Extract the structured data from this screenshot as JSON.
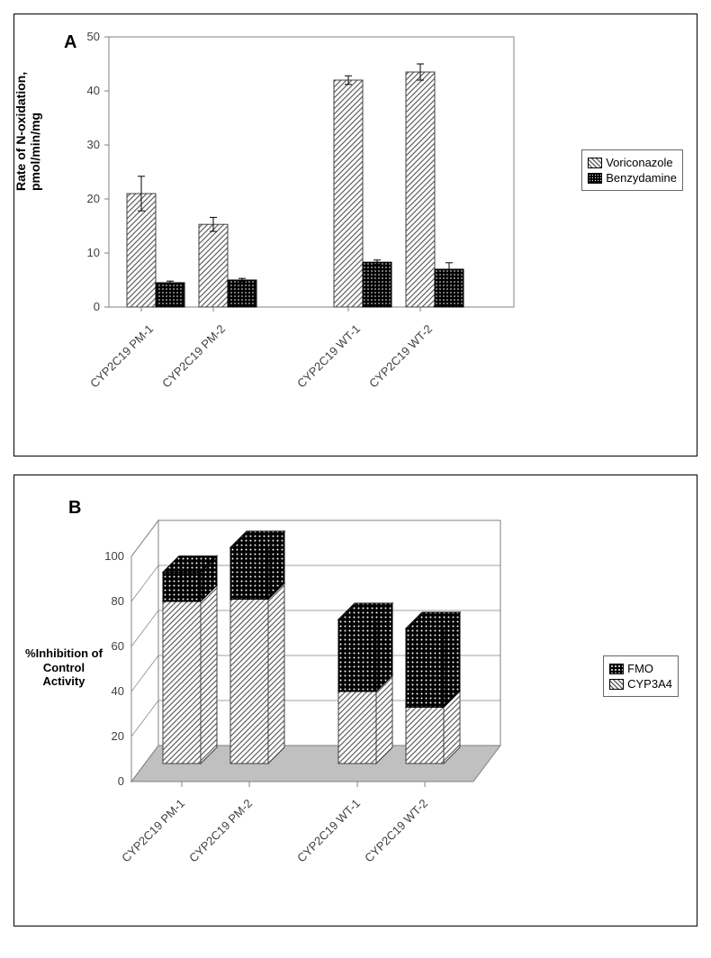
{
  "panelA": {
    "type": "bar",
    "label": "A",
    "ylabel": "Rate of N-oxidation,\npmol/min/mg",
    "ylabel_fontsize": 14,
    "ylim": [
      0,
      50
    ],
    "ytick_step": 10,
    "yticks": [
      0,
      10,
      20,
      30,
      40,
      50
    ],
    "categories": [
      "CYP2C19 PM-1",
      "CYP2C19 PM-2",
      "CYP2C19 WT-1",
      "CYP2C19 WT-2"
    ],
    "series": [
      {
        "name": "Voriconazole",
        "pattern": "diagonal-hatch",
        "color": "#cccccc",
        "values": [
          21,
          15.3,
          42,
          43.5
        ],
        "errors": [
          3.2,
          1.3,
          0.8,
          1.5
        ]
      },
      {
        "name": "Benzydamine",
        "pattern": "dense-dots",
        "color": "#000000",
        "values": [
          4.5,
          5.0,
          8.3,
          7.0
        ],
        "errors": [
          0.3,
          0.3,
          0.4,
          1.2
        ]
      }
    ],
    "bar_colors_legend": [
      "#cccccc",
      "#000000"
    ],
    "plot_border_color": "#808080",
    "background_color": "#ffffff",
    "tick_fontsize": 12,
    "xlabel_rotation": 45,
    "bar_width": 0.35,
    "group_gap_after": 2
  },
  "panelB": {
    "type": "stacked-bar-3d",
    "label": "B",
    "ylabel": "%Inhibition of\nControl Activity",
    "ylabel_fontsize": 13,
    "ylim": [
      0,
      100
    ],
    "ytick_step": 20,
    "yticks": [
      0,
      20,
      40,
      60,
      80,
      100
    ],
    "categories": [
      "CYP2C19 PM-1",
      "CYP2C19 PM-2",
      "CYP2C19 WT-1",
      "CYP2C19 WT-2"
    ],
    "series": [
      {
        "name": "FMO",
        "pattern": "dots",
        "color": "#000000",
        "values": [
          13,
          23,
          32,
          35
        ]
      },
      {
        "name": "CYP3A4",
        "pattern": "diagonal-hatch",
        "color": "#cccccc",
        "values": [
          72,
          73,
          32,
          25
        ]
      }
    ],
    "plot_border_color": "#808080",
    "background_color": "#ffffff",
    "floor_color": "#c0c0c0",
    "tick_fontsize": 12,
    "xlabel_rotation": 45,
    "bar_width": 0.5,
    "depth": 20
  },
  "colors": {
    "panel_border": "#000000",
    "axis": "#808080",
    "text": "#404040"
  }
}
